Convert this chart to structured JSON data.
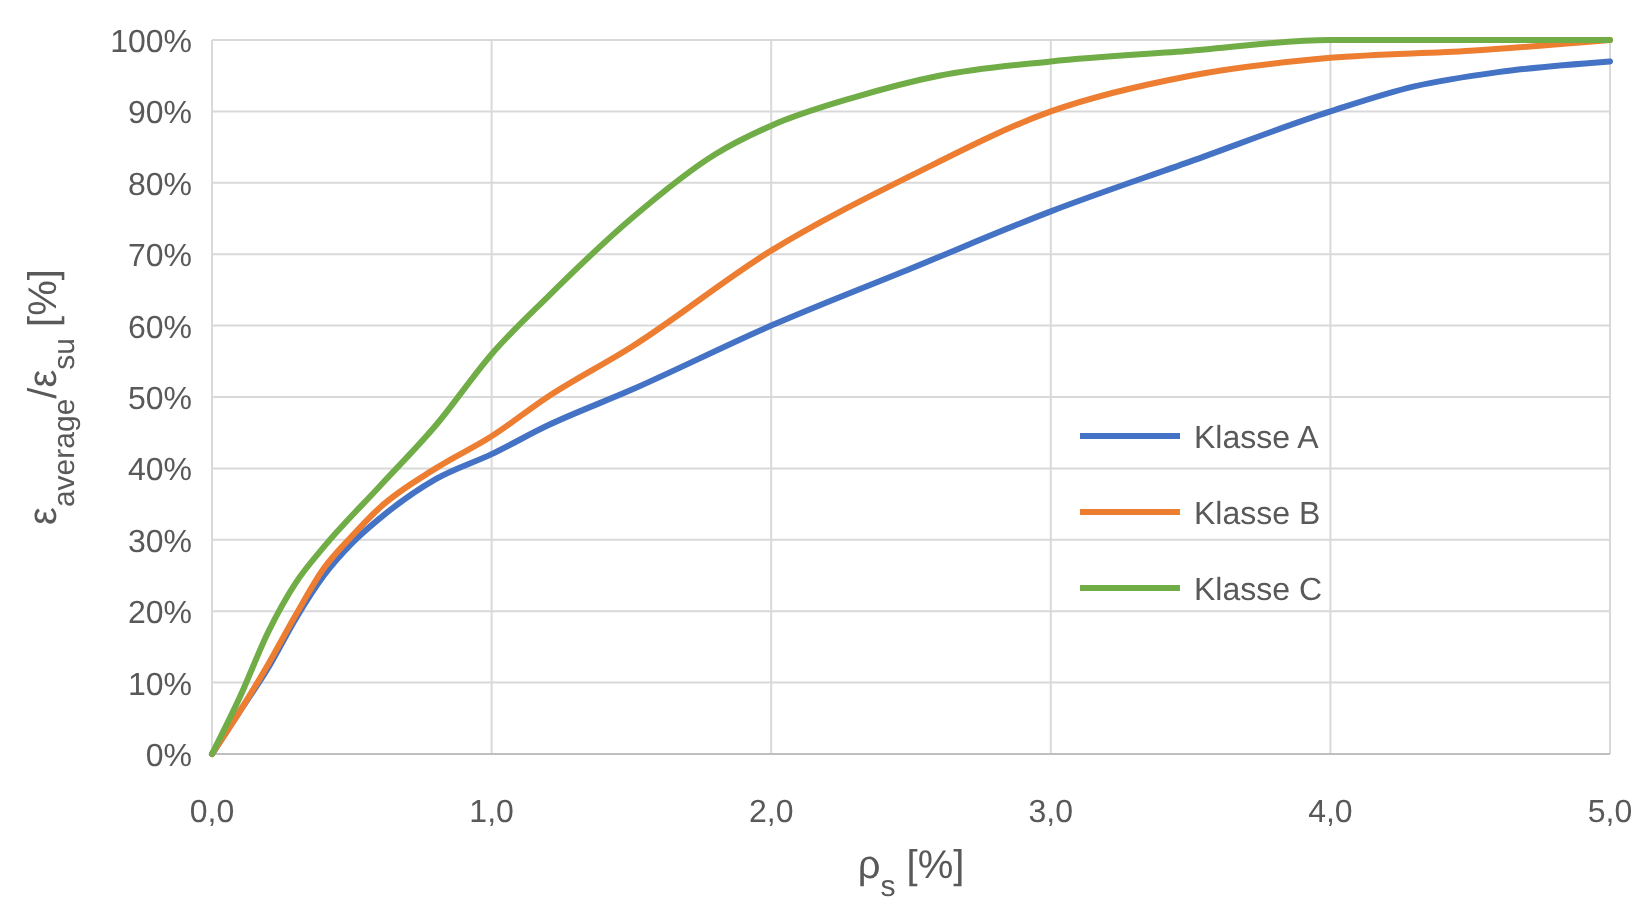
{
  "chart_data": {
    "type": "line",
    "xlabel": "ρ$_{s}$ [%]",
    "ylabel": "ε$_{average}$/ε$_{su}$ [%]",
    "xlim": [
      0,
      5
    ],
    "xticks": [
      {
        "value": 0,
        "label": "0,0"
      },
      {
        "value": 1,
        "label": "1,0"
      },
      {
        "value": 2,
        "label": "2,0"
      },
      {
        "value": 3,
        "label": "3,0"
      },
      {
        "value": 4,
        "label": "4,0"
      },
      {
        "value": 5,
        "label": "5,0"
      }
    ],
    "ylim": [
      0,
      100
    ],
    "yticks": [
      {
        "value": 0,
        "label": "0%"
      },
      {
        "value": 10,
        "label": "10%"
      },
      {
        "value": 20,
        "label": "20%"
      },
      {
        "value": 30,
        "label": "30%"
      },
      {
        "value": 40,
        "label": "40%"
      },
      {
        "value": 50,
        "label": "50%"
      },
      {
        "value": 60,
        "label": "60%"
      },
      {
        "value": 70,
        "label": "70%"
      },
      {
        "value": 80,
        "label": "80%"
      },
      {
        "value": 90,
        "label": "90%"
      },
      {
        "value": 100,
        "label": "100%"
      }
    ],
    "grid": true,
    "legend": "right",
    "marker": "none",
    "line_style": "solid",
    "series": [
      {
        "name": "Klasse A",
        "color": "#4472c4",
        "x": [
          0,
          0.1,
          0.2,
          0.3,
          0.4,
          0.5,
          0.6,
          0.8,
          1.0,
          1.2,
          1.5,
          2.0,
          2.5,
          3.0,
          3.5,
          4.0,
          4.3,
          4.6,
          5.0
        ],
        "values": [
          0,
          6,
          12,
          19,
          25,
          29.5,
          33,
          38.5,
          42,
          46,
          51,
          60,
          68,
          76,
          83,
          90,
          93.5,
          95.5,
          97
        ]
      },
      {
        "name": "Klasse B",
        "color": "#ed7d31",
        "x": [
          0,
          0.1,
          0.2,
          0.3,
          0.4,
          0.5,
          0.6,
          0.8,
          1.0,
          1.2,
          1.5,
          2.0,
          2.5,
          3.0,
          3.5,
          4.0,
          4.5,
          5.0
        ],
        "values": [
          0,
          6,
          12.5,
          19.5,
          26,
          30.5,
          34.5,
          40,
          44.5,
          50,
          57,
          70.5,
          81,
          90,
          95,
          97.5,
          98.5,
          100
        ]
      },
      {
        "name": "Klasse C",
        "color": "#70ad47",
        "x": [
          0,
          0.1,
          0.2,
          0.3,
          0.4,
          0.6,
          0.8,
          1.0,
          1.2,
          1.5,
          1.8,
          2.0,
          2.3,
          2.6,
          3.0,
          3.5,
          4.0,
          5.0
        ],
        "values": [
          0,
          8,
          17,
          24,
          29,
          37.5,
          46,
          56,
          64,
          75,
          84,
          88,
          92,
          95,
          97,
          98.5,
          100,
          100
        ]
      }
    ]
  }
}
